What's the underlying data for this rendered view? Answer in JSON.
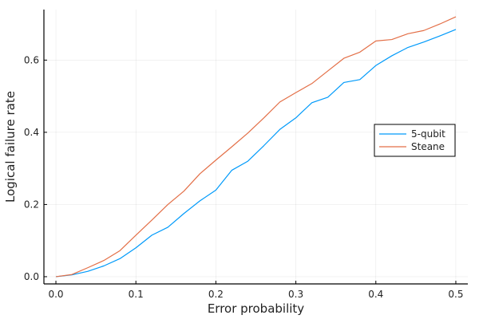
{
  "chart_data": {
    "type": "line",
    "title": "",
    "xlabel": "Error probability",
    "ylabel": "Logical failure rate",
    "xlim": [
      -0.015,
      0.515
    ],
    "ylim": [
      -0.02,
      0.74
    ],
    "xticks": [
      0.0,
      0.1,
      0.2,
      0.3,
      0.4,
      0.5
    ],
    "xtick_labels": [
      "0.0",
      "0.1",
      "0.2",
      "0.3",
      "0.4",
      "0.5"
    ],
    "yticks": [
      0.0,
      0.2,
      0.4,
      0.6
    ],
    "ytick_labels": [
      "0.0",
      "0.2",
      "0.4",
      "0.6"
    ],
    "grid": true,
    "legend_position": "right",
    "x": [
      0.0,
      0.02,
      0.04,
      0.06,
      0.08,
      0.1,
      0.12,
      0.14,
      0.16,
      0.18,
      0.2,
      0.22,
      0.24,
      0.26,
      0.28,
      0.3,
      0.32,
      0.34,
      0.36,
      0.38,
      0.4,
      0.42,
      0.44,
      0.46,
      0.48,
      0.5
    ],
    "series": [
      {
        "name": "5-qubit",
        "color": "#009AFA",
        "values": [
          0.0,
          0.005,
          0.015,
          0.03,
          0.05,
          0.08,
          0.115,
          0.137,
          0.175,
          0.21,
          0.24,
          0.295,
          0.32,
          0.363,
          0.408,
          0.44,
          0.482,
          0.497,
          0.538,
          0.546,
          0.585,
          0.612,
          0.635,
          0.65,
          0.667,
          0.685
        ]
      },
      {
        "name": "Steane",
        "color": "#E36F47",
        "values": [
          0.0,
          0.006,
          0.025,
          0.045,
          0.072,
          0.115,
          0.157,
          0.2,
          0.237,
          0.285,
          0.323,
          0.36,
          0.398,
          0.44,
          0.484,
          0.51,
          0.535,
          0.57,
          0.605,
          0.622,
          0.653,
          0.657,
          0.673,
          0.682,
          0.7,
          0.72
        ]
      }
    ]
  }
}
